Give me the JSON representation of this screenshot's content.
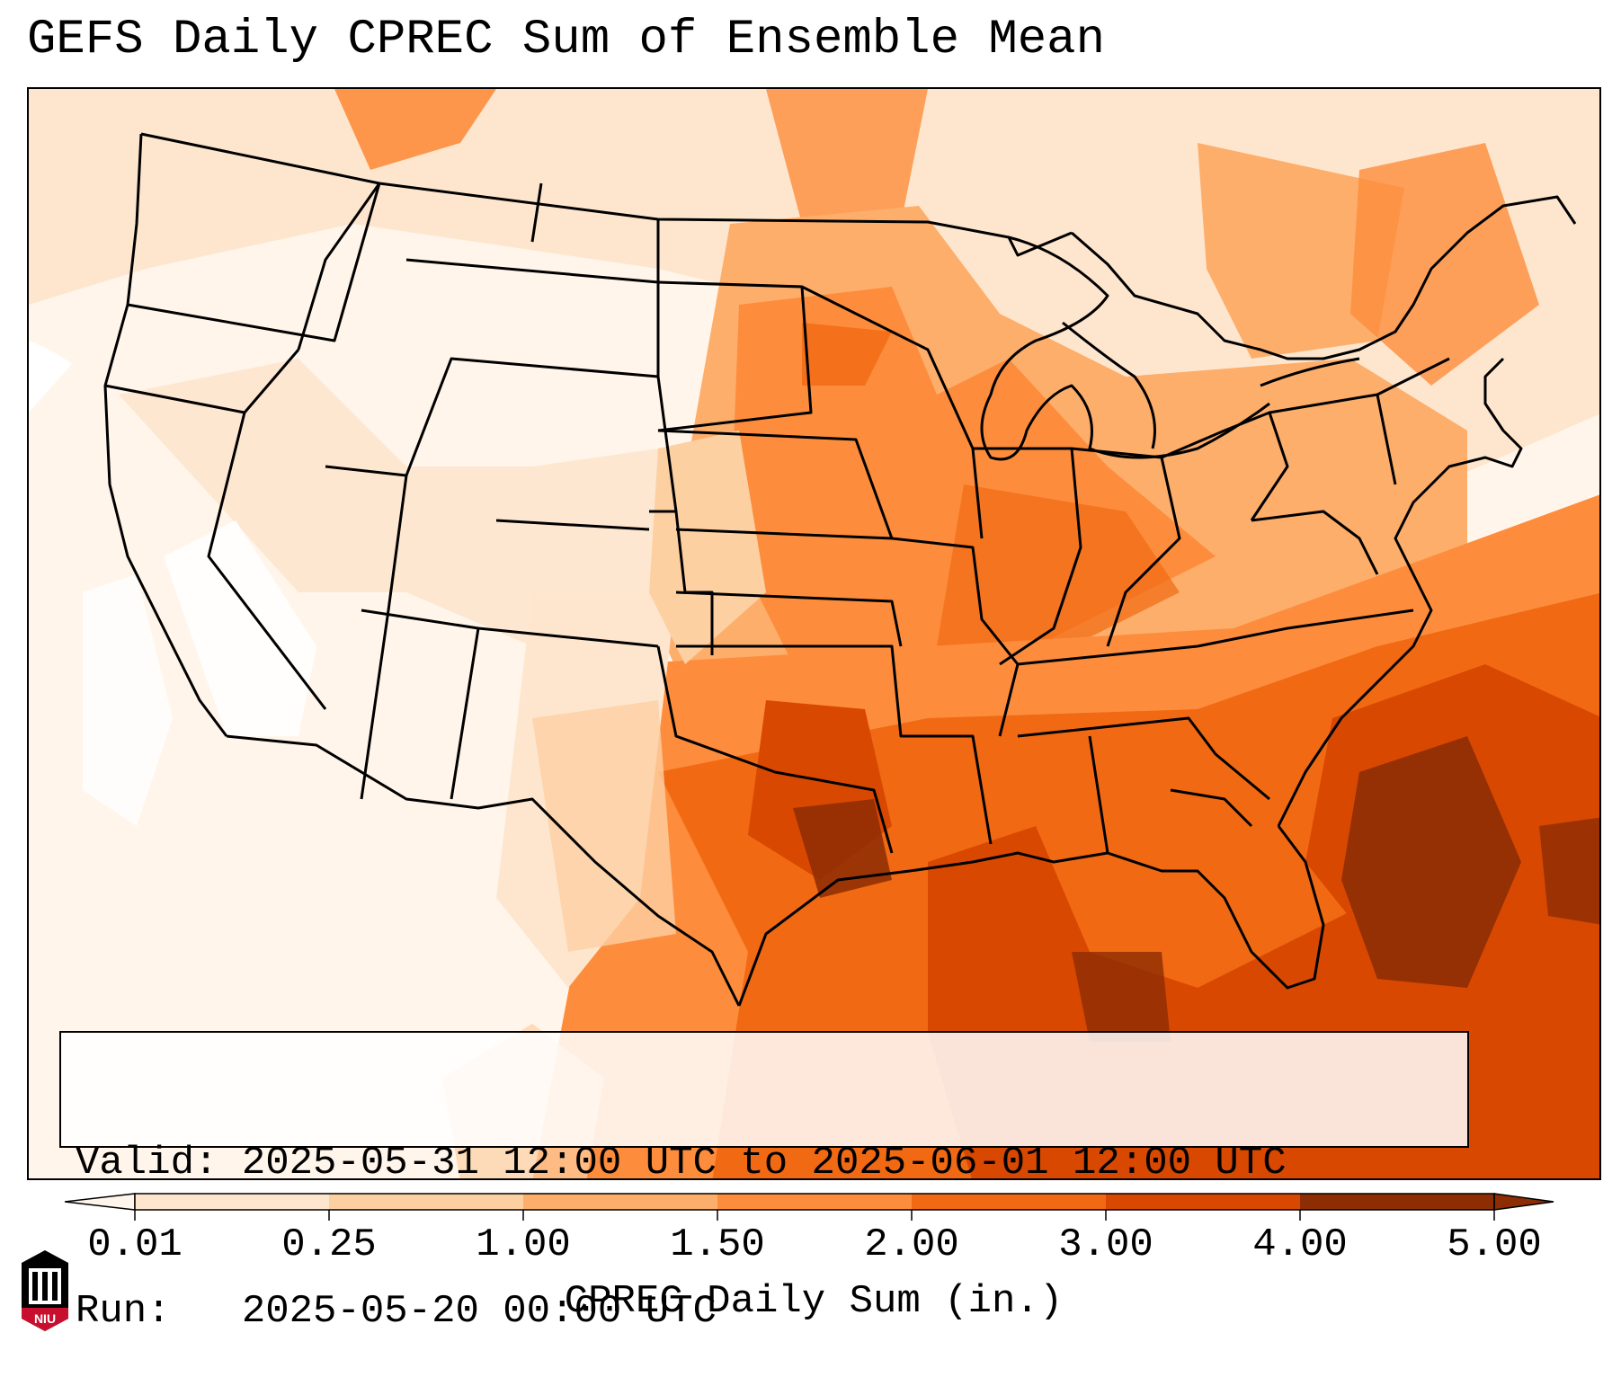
{
  "title": "GEFS Daily CPREC Sum of Ensemble Mean",
  "info": {
    "valid_line": "Valid: 2025-05-31 12:00 UTC to 2025-06-01 12:00 UTC",
    "run_line": "Run:   2025-05-20 00:00 UTC"
  },
  "colorbar": {
    "label": "CPREC Daily Sum (in.)",
    "levels": [
      "0.01",
      "0.25",
      "1.00",
      "1.50",
      "2.00",
      "3.00",
      "4.00",
      "5.00"
    ],
    "colors": [
      "#fff5eb",
      "#fee6ce",
      "#fdd0a2",
      "#fdae6b",
      "#fd8d3c",
      "#f16913",
      "#d94801",
      "#8c2d04"
    ],
    "extend": "both"
  },
  "logo": {
    "text": "NIU",
    "color": "#c8102e"
  },
  "map": {
    "region": "Continental United States",
    "borders": "state and country outlines (black)",
    "heaviest_precip": "Southeast U.S., Gulf of Mexico, western Atlantic and Texas-Oklahoma"
  }
}
